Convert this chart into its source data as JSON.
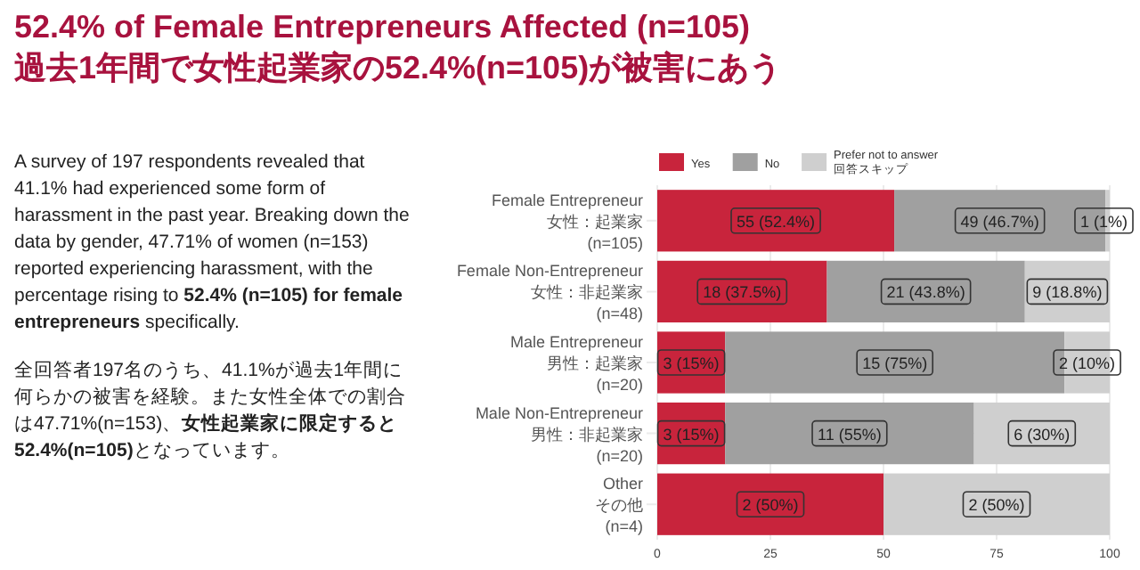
{
  "chart_data": {
    "type": "bar",
    "orientation": "horizontal",
    "stacked": true,
    "title": "52.4% of Female Entrepreneurs Affected (n=105)",
    "subtitle": "過去1年間で女性起業家の52.4%(n=105)が被害にあう",
    "categories": [
      "Female Entrepreneur\n女性：起業家\n(n=105)",
      "Female Non-Entrepreneur\n女性：非起業家\n(n=48)",
      "Male Entrepreneur\n男性：起業家\n(n=20)",
      "Male Non-Entrepreneur\n男性：非起業家\n(n=20)",
      "Other\nその他\n(n=4)"
    ],
    "series": [
      {
        "name": "Yes",
        "color": "#c8243c",
        "values": [
          52.38,
          37.5,
          15,
          15,
          50
        ],
        "value_labels": [
          "55 (52.4%)",
          "18 (37.5%)",
          "3 (15%)",
          "3 (15%)",
          "2 (50%)"
        ]
      },
      {
        "name": "No",
        "color": "#a0a0a0",
        "values": [
          46.67,
          43.75,
          75,
          55,
          0
        ],
        "value_labels": [
          "49 (46.7%)",
          "21 (43.8%)",
          "15 (75%)",
          "11 (55%)",
          null
        ]
      },
      {
        "name": "Prefer not to answer\n回答スキップ",
        "color": "#cfcfcf",
        "values": [
          0.95,
          18.75,
          10,
          30,
          50
        ],
        "value_labels": [
          "1 (1%)",
          "9 (18.8%)",
          "2 (10%)",
          "6 (30%)",
          "2 (50%)"
        ]
      }
    ],
    "xlim": [
      0,
      100
    ],
    "xticks": [
      0,
      25,
      50,
      75,
      100
    ],
    "grid": true,
    "legend": "top",
    "annotations": [
      "A survey of 197 respondents revealed that 41.1% had experienced some form of harassment in the past year. Breaking down the data by gender, 47.71% of women (n=153) reported experiencing harassment, with the percentage rising to ",
      "52.4% (n=105) for female entrepreneurs",
      " specifically.",
      "全回答者197名のうち、41.1%が過去1年間に何らかの被害を経験。また女性全体での割合は47.71%(n=153)、",
      "女性起業家に限定すると52.4%(n=105)",
      "となっています。"
    ]
  }
}
